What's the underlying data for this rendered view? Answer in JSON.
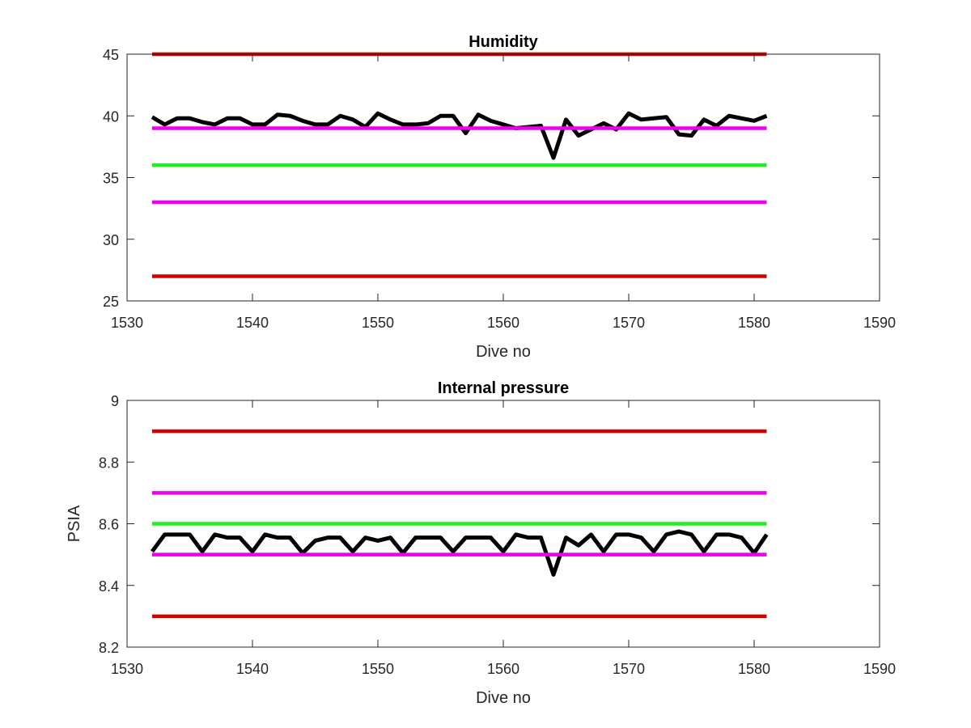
{
  "colors": {
    "data": "#000000",
    "red_limit": "#d40000",
    "magenta_limit": "#ee00ee",
    "green_target": "#22ee22",
    "axes": "#262626"
  },
  "chart_data": [
    {
      "type": "line",
      "title": "Humidity",
      "xlabel": "Dive no",
      "ylabel": "",
      "xlim": [
        1530,
        1590
      ],
      "ylim": [
        25,
        45
      ],
      "xticks": [
        1530,
        1540,
        1550,
        1560,
        1570,
        1580,
        1590
      ],
      "yticks": [
        25,
        30,
        35,
        40,
        45
      ],
      "grid": false,
      "series": [
        {
          "role": "data",
          "color": "#000000",
          "x": [
            1532,
            1533,
            1534,
            1535,
            1536,
            1537,
            1538,
            1539,
            1540,
            1541,
            1542,
            1543,
            1544,
            1545,
            1546,
            1547,
            1548,
            1549,
            1550,
            1551,
            1552,
            1553,
            1554,
            1555,
            1556,
            1557,
            1558,
            1559,
            1560,
            1561,
            1562,
            1563,
            1564,
            1565,
            1566,
            1567,
            1568,
            1569,
            1570,
            1571,
            1572,
            1573,
            1574,
            1575,
            1576,
            1577,
            1578,
            1579,
            1580,
            1581
          ],
          "y": [
            39.9,
            39.3,
            39.8,
            39.8,
            39.5,
            39.3,
            39.8,
            39.8,
            39.3,
            39.3,
            40.1,
            40.0,
            39.6,
            39.3,
            39.3,
            40.0,
            39.7,
            39.1,
            40.2,
            39.7,
            39.3,
            39.3,
            39.4,
            40.0,
            40.0,
            38.6,
            40.1,
            39.6,
            39.3,
            39.0,
            39.1,
            39.2,
            36.6,
            39.7,
            38.4,
            38.9,
            39.4,
            38.9,
            40.2,
            39.7,
            39.8,
            39.9,
            38.5,
            38.4,
            39.7,
            39.2,
            40.0,
            39.8,
            39.6,
            40.0
          ]
        },
        {
          "role": "limit",
          "color": "#d40000",
          "x": [
            1532,
            1581
          ],
          "y": [
            45,
            45
          ]
        },
        {
          "role": "limit",
          "color": "#ee00ee",
          "x": [
            1532,
            1581
          ],
          "y": [
            39,
            39
          ]
        },
        {
          "role": "target",
          "color": "#22ee22",
          "x": [
            1532,
            1581
          ],
          "y": [
            36,
            36
          ]
        },
        {
          "role": "limit",
          "color": "#ee00ee",
          "x": [
            1532,
            1581
          ],
          "y": [
            33,
            33
          ]
        },
        {
          "role": "limit",
          "color": "#d40000",
          "x": [
            1532,
            1581
          ],
          "y": [
            27,
            27
          ]
        }
      ]
    },
    {
      "type": "line",
      "title": "Internal pressure",
      "xlabel": "Dive no",
      "ylabel": "PSIA",
      "xlim": [
        1530,
        1590
      ],
      "ylim": [
        8.2,
        9
      ],
      "xticks": [
        1530,
        1540,
        1550,
        1560,
        1570,
        1580,
        1590
      ],
      "yticks": [
        8.2,
        8.4,
        8.6,
        8.8,
        9
      ],
      "grid": false,
      "series": [
        {
          "role": "data",
          "color": "#000000",
          "x": [
            1532,
            1533,
            1534,
            1535,
            1536,
            1537,
            1538,
            1539,
            1540,
            1541,
            1542,
            1543,
            1544,
            1545,
            1546,
            1547,
            1548,
            1549,
            1550,
            1551,
            1552,
            1553,
            1554,
            1555,
            1556,
            1557,
            1558,
            1559,
            1560,
            1561,
            1562,
            1563,
            1564,
            1565,
            1566,
            1567,
            1568,
            1569,
            1570,
            1571,
            1572,
            1573,
            1574,
            1575,
            1576,
            1577,
            1578,
            1579,
            1580,
            1581
          ],
          "y": [
            8.51,
            8.565,
            8.565,
            8.565,
            8.51,
            8.565,
            8.555,
            8.555,
            8.51,
            8.565,
            8.555,
            8.555,
            8.505,
            8.545,
            8.555,
            8.555,
            8.51,
            8.555,
            8.545,
            8.555,
            8.505,
            8.555,
            8.555,
            8.555,
            8.51,
            8.555,
            8.555,
            8.555,
            8.51,
            8.565,
            8.555,
            8.555,
            8.435,
            8.555,
            8.53,
            8.565,
            8.51,
            8.565,
            8.565,
            8.555,
            8.51,
            8.565,
            8.575,
            8.565,
            8.51,
            8.565,
            8.565,
            8.555,
            8.505,
            8.565
          ]
        },
        {
          "role": "limit",
          "color": "#d40000",
          "x": [
            1532,
            1581
          ],
          "y": [
            8.9,
            8.9
          ]
        },
        {
          "role": "limit",
          "color": "#ee00ee",
          "x": [
            1532,
            1581
          ],
          "y": [
            8.7,
            8.7
          ]
        },
        {
          "role": "target",
          "color": "#22ee22",
          "x": [
            1532,
            1581
          ],
          "y": [
            8.6,
            8.6
          ]
        },
        {
          "role": "limit",
          "color": "#ee00ee",
          "x": [
            1532,
            1581
          ],
          "y": [
            8.5,
            8.5
          ]
        },
        {
          "role": "limit",
          "color": "#d40000",
          "x": [
            1532,
            1581
          ],
          "y": [
            8.3,
            8.3
          ]
        }
      ]
    }
  ]
}
